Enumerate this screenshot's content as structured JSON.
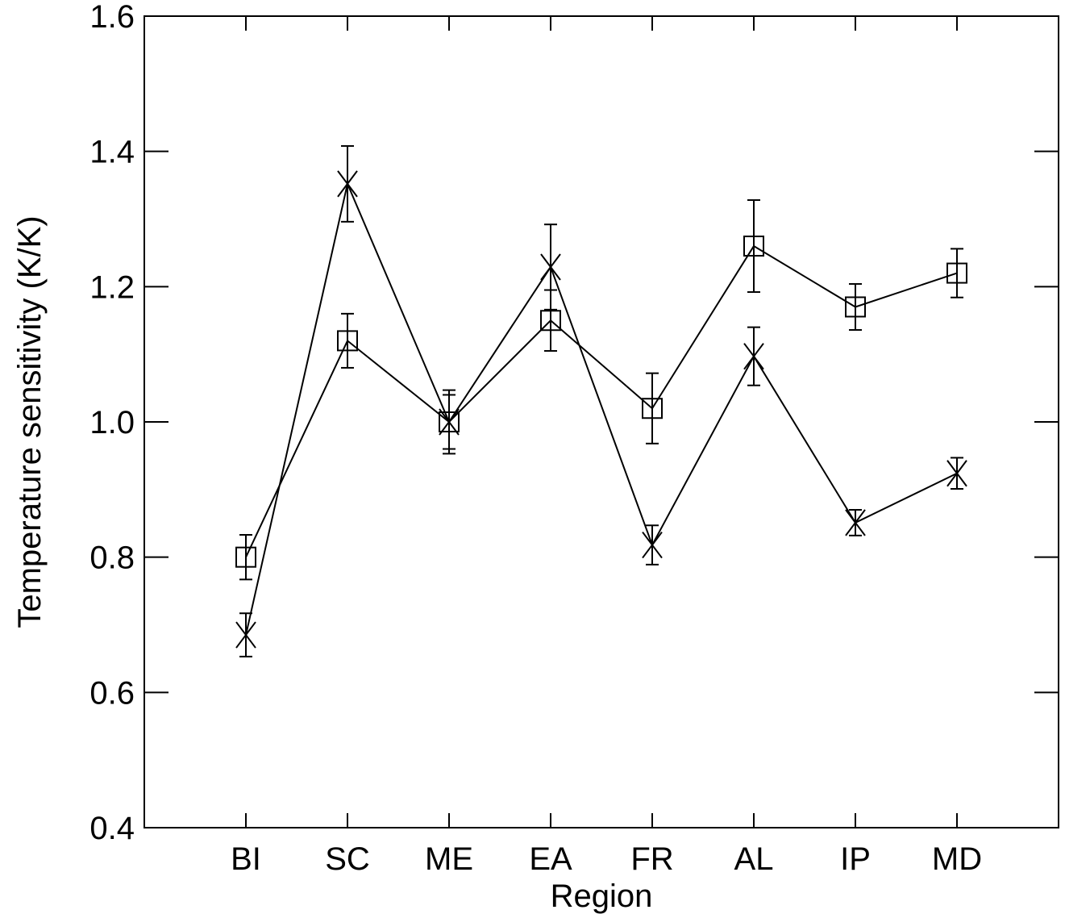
{
  "chart_data": {
    "type": "line",
    "xlabel": "Region",
    "ylabel": "Temperature sensitivity (K/K)",
    "categories": [
      "BI",
      "SC",
      "ME",
      "EA",
      "FR",
      "AL",
      "IP",
      "MD"
    ],
    "series": [
      {
        "marker": "square",
        "color": "#000000",
        "values": [
          0.8,
          1.12,
          1.0,
          1.15,
          1.02,
          1.26,
          1.17,
          1.22
        ],
        "errors": [
          0.033,
          0.04,
          0.04,
          0.045,
          0.052,
          0.068,
          0.034,
          0.036
        ]
      },
      {
        "marker": "x",
        "color": "#000000",
        "values": [
          0.685,
          1.352,
          1.0,
          1.229,
          0.818,
          1.097,
          0.851,
          0.924
        ],
        "errors": [
          0.032,
          0.056,
          0.047,
          0.063,
          0.029,
          0.043,
          0.019,
          0.023
        ]
      }
    ],
    "ylim": [
      0.4,
      1.6
    ],
    "yticks": [
      0.4,
      0.6,
      0.8,
      {
        "value": 1.0,
        "label": "1.0"
      },
      1.2,
      1.4,
      1.6
    ]
  }
}
